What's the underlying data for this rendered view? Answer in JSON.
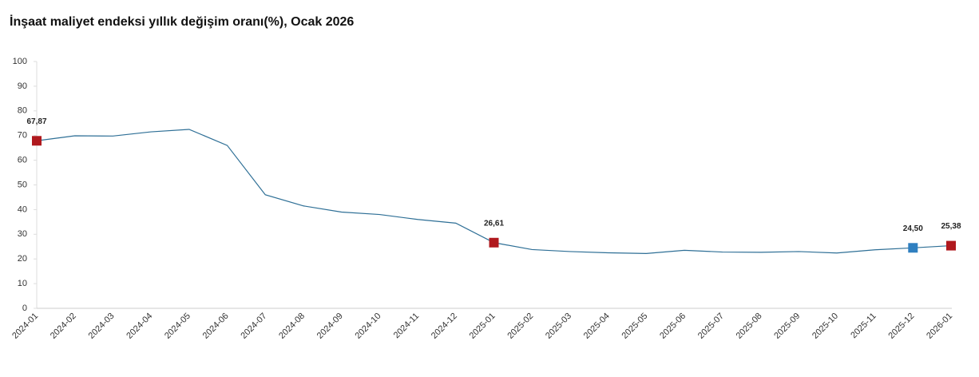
{
  "chart_data": {
    "type": "line",
    "title": "İnşaat maliyet endeksi yıllık değişim oranı(%), Ocak 2026",
    "categories": [
      "2024-01",
      "2024-02",
      "2024-03",
      "2024-04",
      "2024-05",
      "2024-06",
      "2024-07",
      "2024-08",
      "2024-09",
      "2024-10",
      "2024-11",
      "2024-12",
      "2025-01",
      "2025-02",
      "2025-03",
      "2025-04",
      "2025-05",
      "2025-06",
      "2025-07",
      "2025-08",
      "2025-09",
      "2025-10",
      "2025-11",
      "2025-12",
      "2026-01"
    ],
    "series": [
      {
        "color": "#2e6f96",
        "values": [
          67.87,
          69.9,
          69.8,
          71.5,
          72.5,
          66,
          46,
          41.5,
          39,
          38,
          36,
          34.5,
          26.61,
          23.8,
          23,
          22.5,
          22.2,
          23.5,
          22.8,
          22.7,
          23,
          22.4,
          23.7,
          24.5,
          25.38
        ],
        "value_labels": [
          "67,87",
          null,
          null,
          null,
          null,
          null,
          null,
          null,
          null,
          null,
          null,
          null,
          "26,61",
          null,
          null,
          null,
          null,
          null,
          null,
          null,
          null,
          null,
          null,
          "24,50",
          "25,38"
        ],
        "marker_colors": [
          "#b0191e",
          null,
          null,
          null,
          null,
          null,
          null,
          null,
          null,
          null,
          null,
          null,
          "#b0191e",
          null,
          null,
          null,
          null,
          null,
          null,
          null,
          null,
          null,
          null,
          "#2f7fc0",
          "#b0191e"
        ]
      }
    ],
    "ylim": [
      0,
      100
    ],
    "yticks": [
      0,
      10,
      20,
      30,
      40,
      50,
      60,
      70,
      80,
      90,
      100
    ],
    "grid": false
  }
}
